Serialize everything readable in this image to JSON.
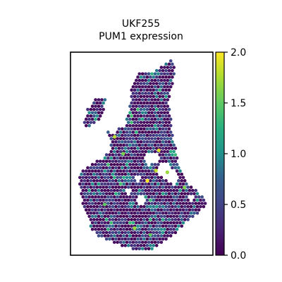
{
  "chart_data": {
    "type": "scatter",
    "title_line1": "UKF255",
    "title_line2": "PUM1 expression",
    "xlabel": "",
    "ylabel": "",
    "grid": false,
    "colormap": "viridis",
    "colorbar": {
      "range": [
        0.0,
        2.0
      ],
      "ticks": [
        0.0,
        0.5,
        1.0,
        1.5,
        2.0
      ],
      "tick_labels": [
        "0.0",
        "0.5",
        "1.0",
        "1.5",
        "2.0"
      ]
    },
    "background_value": 0.15,
    "tissue_outline": [
      [
        0.43,
        1.0
      ],
      [
        0.42,
        0.9
      ],
      [
        0.4,
        0.82
      ],
      [
        0.38,
        0.76
      ],
      [
        0.33,
        0.75
      ],
      [
        0.26,
        0.76
      ],
      [
        0.26,
        0.7
      ],
      [
        0.29,
        0.64
      ],
      [
        0.24,
        0.58
      ],
      [
        0.19,
        0.56
      ],
      [
        0.12,
        0.52
      ],
      [
        0.07,
        0.5
      ],
      [
        0.06,
        0.45
      ],
      [
        0.07,
        0.36
      ],
      [
        0.09,
        0.3
      ],
      [
        0.12,
        0.24
      ],
      [
        0.14,
        0.16
      ],
      [
        0.19,
        0.11
      ],
      [
        0.26,
        0.09
      ],
      [
        0.34,
        0.06
      ],
      [
        0.4,
        0.05
      ],
      [
        0.44,
        0.03
      ],
      [
        0.5,
        0.02
      ],
      [
        0.56,
        0.03
      ],
      [
        0.62,
        0.06
      ],
      [
        0.68,
        0.09
      ],
      [
        0.76,
        0.15
      ],
      [
        0.82,
        0.2
      ],
      [
        0.88,
        0.24
      ],
      [
        0.94,
        0.28
      ],
      [
        0.96,
        0.32
      ],
      [
        0.92,
        0.35
      ],
      [
        0.86,
        0.4
      ],
      [
        0.8,
        0.45
      ],
      [
        0.76,
        0.55
      ],
      [
        0.74,
        0.62
      ],
      [
        0.72,
        0.7
      ],
      [
        0.71,
        0.78
      ],
      [
        0.7,
        0.85
      ],
      [
        0.68,
        0.92
      ],
      [
        0.66,
        0.97
      ],
      [
        0.62,
        1.02
      ],
      [
        0.58,
        1.05
      ],
      [
        0.54,
        1.08
      ],
      [
        0.5,
        1.09
      ],
      [
        0.46,
        1.06
      ],
      [
        0.44,
        1.03
      ]
    ],
    "upper_right_lobe": [
      [
        0.43,
        1.0
      ],
      [
        0.47,
        1.03
      ],
      [
        0.52,
        1.06
      ],
      [
        0.58,
        1.08
      ],
      [
        0.62,
        1.1
      ],
      [
        0.66,
        1.13
      ],
      [
        0.7,
        1.15
      ],
      [
        0.72,
        1.16
      ],
      [
        0.73,
        1.1
      ],
      [
        0.72,
        1.02
      ],
      [
        0.7,
        0.95
      ],
      [
        0.68,
        0.9
      ]
    ],
    "upper_left_lobe": [
      [
        0.11,
        0.82
      ],
      [
        0.12,
        0.86
      ],
      [
        0.15,
        0.9
      ],
      [
        0.19,
        0.93
      ],
      [
        0.22,
        0.94
      ],
      [
        0.25,
        0.93
      ],
      [
        0.24,
        0.88
      ],
      [
        0.22,
        0.82
      ],
      [
        0.18,
        0.78
      ],
      [
        0.14,
        0.76
      ],
      [
        0.1,
        0.76
      ],
      [
        0.09,
        0.79
      ]
    ],
    "holes": [
      [
        0.55,
        0.57,
        0.035
      ],
      [
        0.6,
        0.57,
        0.03
      ],
      [
        0.66,
        0.5,
        0.045
      ],
      [
        0.72,
        0.46,
        0.04
      ],
      [
        0.5,
        0.32,
        0.03
      ],
      [
        0.47,
        0.45,
        0.02
      ],
      [
        0.4,
        0.38,
        0.02
      ],
      [
        0.3,
        0.74,
        0.03
      ],
      [
        0.85,
        0.34,
        0.02
      ]
    ],
    "highlight_points": [
      {
        "x": 0.31,
        "y": 0.7,
        "value": 1.8
      },
      {
        "x": 0.37,
        "y": 0.6,
        "value": 1.6
      },
      {
        "x": 0.62,
        "y": 0.62,
        "value": 1.9
      },
      {
        "x": 0.68,
        "y": 0.49,
        "value": 1.7
      },
      {
        "x": 0.54,
        "y": 0.44,
        "value": 2.0
      },
      {
        "x": 0.24,
        "y": 0.3,
        "value": 1.5
      },
      {
        "x": 0.8,
        "y": 0.4,
        "value": 1.6
      },
      {
        "x": 0.45,
        "y": 0.16,
        "value": 1.7
      },
      {
        "x": 0.56,
        "y": 0.12,
        "value": 1.5
      },
      {
        "x": 0.6,
        "y": 0.5,
        "value": 1.8
      }
    ]
  }
}
